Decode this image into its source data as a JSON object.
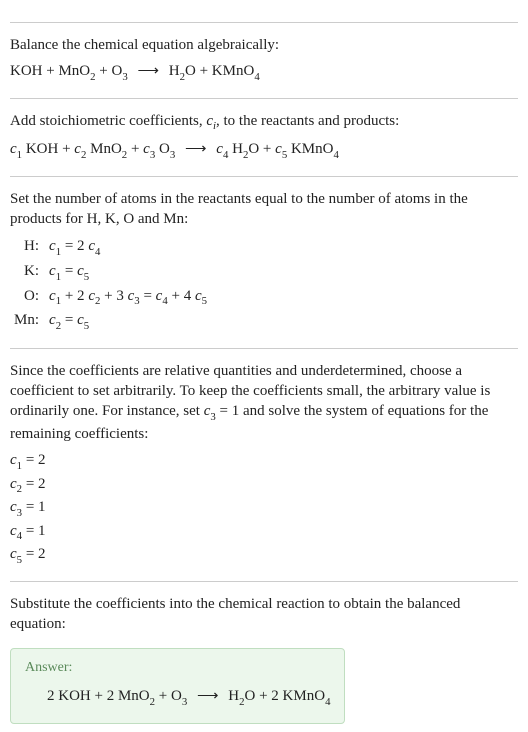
{
  "section1": {
    "intro": "Balance the chemical equation algebraically:",
    "reaction_html": "KOH + MnO<span class='sub'>2</span> + O<span class='sub'>3</span> <span class='arrow'>⟶</span> H<span class='sub'>2</span>O + KMnO<span class='sub'>4</span>"
  },
  "section2": {
    "intro_html": "Add stoichiometric coefficients, <span class='ital'>c<span class='sub'>i</span></span>, to the reactants and products:",
    "reaction_html": "<span class='ital'>c</span><span class='sub'>1</span> KOH + <span class='ital'>c</span><span class='sub'>2</span> MnO<span class='sub'>2</span> + <span class='ital'>c</span><span class='sub'>3</span> O<span class='sub'>3</span> <span class='arrow'>⟶</span> <span class='ital'>c</span><span class='sub'>4</span> H<span class='sub'>2</span>O + <span class='ital'>c</span><span class='sub'>5</span> KMnO<span class='sub'>4</span>"
  },
  "section3": {
    "intro": "Set the number of atoms in the reactants equal to the number of atoms in the products for H, K, O and Mn:",
    "rows": [
      {
        "el": "H:",
        "eq_html": "<span class='ital'>c</span><span class='sub'>1</span> = 2 <span class='ital'>c</span><span class='sub'>4</span>"
      },
      {
        "el": "K:",
        "eq_html": "<span class='ital'>c</span><span class='sub'>1</span> = <span class='ital'>c</span><span class='sub'>5</span>"
      },
      {
        "el": "O:",
        "eq_html": "<span class='ital'>c</span><span class='sub'>1</span> + 2 <span class='ital'>c</span><span class='sub'>2</span> + 3 <span class='ital'>c</span><span class='sub'>3</span> = <span class='ital'>c</span><span class='sub'>4</span> + 4 <span class='ital'>c</span><span class='sub'>5</span>"
      },
      {
        "el": "Mn:",
        "eq_html": "<span class='ital'>c</span><span class='sub'>2</span> = <span class='ital'>c</span><span class='sub'>5</span>"
      }
    ]
  },
  "section4": {
    "intro_html": "Since the coefficients are relative quantities and underdetermined, choose a coefficient to set arbitrarily. To keep the coefficients small, the arbitrary value is ordinarily one. For instance, set <span class='ital'>c</span><span class='sub'>3</span> = 1 and solve the system of equations for the remaining coefficients:",
    "coeffs": [
      "<span class='ital'>c</span><span class='sub'>1</span> = 2",
      "<span class='ital'>c</span><span class='sub'>2</span> = 2",
      "<span class='ital'>c</span><span class='sub'>3</span> = 1",
      "<span class='ital'>c</span><span class='sub'>4</span> = 1",
      "<span class='ital'>c</span><span class='sub'>5</span> = 2"
    ]
  },
  "section5": {
    "intro": "Substitute the coefficients into the chemical reaction to obtain the balanced equation:",
    "answer_label": "Answer:",
    "answer_html": "2 KOH + 2 MnO<span class='sub'>2</span> + O<span class='sub'>3</span> <span class='arrow'>⟶</span> H<span class='sub'>2</span>O + 2 KMnO<span class='sub'>4</span>"
  },
  "colors": {
    "border": "#cccccc",
    "text": "#222222",
    "answer_bg": "#ecf7ec",
    "answer_border": "#c0dec0",
    "answer_label": "#5a8a5a"
  }
}
